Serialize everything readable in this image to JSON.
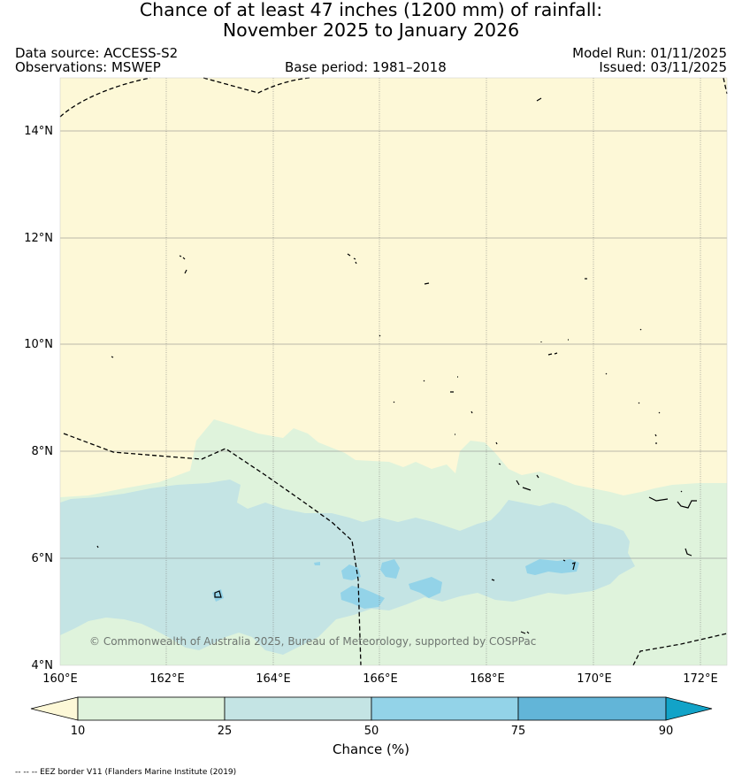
{
  "header": {
    "title_line1": "Chance of at least 47 inches (1200  mm) of rainfall:",
    "title_line2": "November 2025 to January 2026",
    "data_source": "Data source: ACCESS-S2",
    "observations": "Observations: MSWEP",
    "base_period": "Base period: 1981–2018",
    "model_run": "Model Run: 01/11/2025",
    "issued": "Issued: 03/11/2025"
  },
  "map": {
    "lat_ticks": [
      "14°N",
      "12°N",
      "10°N",
      "8°N",
      "6°N",
      "4°N"
    ],
    "lon_ticks": [
      "160°E",
      "162°E",
      "164°E",
      "166°E",
      "168°E",
      "170°E",
      "172°E"
    ],
    "attribution": "© Commonwealth of Australia 2025, Bureau of Meteorology, supported by COSPPac"
  },
  "colorbar": {
    "tick_labels": [
      "10",
      "25",
      "50",
      "75",
      "90"
    ],
    "label": "Chance (%)",
    "colors": [
      "#fdf8d7",
      "#dff3dc",
      "#c4e4e4",
      "#93d3e8",
      "#62b5d8",
      "#12a3c8"
    ]
  },
  "footnote": "-- -- -- EEZ border V11 (Flanders Marine Institute (2019)"
}
